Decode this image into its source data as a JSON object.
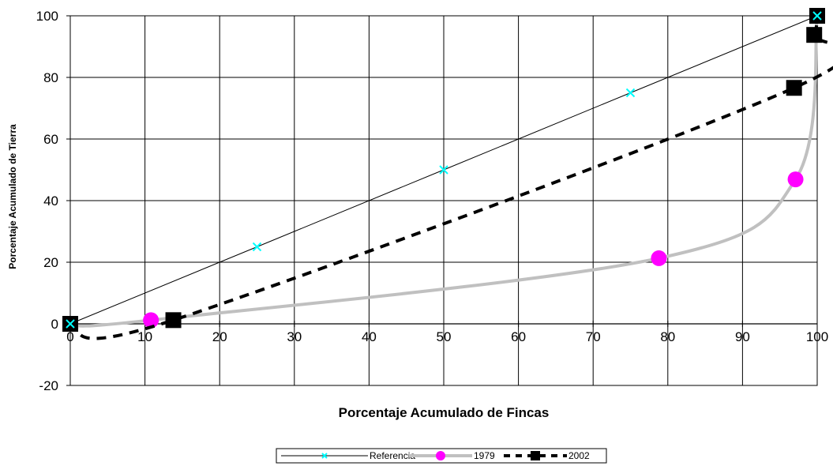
{
  "chart_data": {
    "type": "line",
    "title": "",
    "xlabel": "Porcentaje Acumulado de Fincas",
    "ylabel": "Porcentaje Acumulado de Tierra",
    "xlim": [
      0,
      100
    ],
    "ylim": [
      -20,
      100
    ],
    "x_ticks": [
      "0",
      "10",
      "20",
      "30",
      "40",
      "50",
      "60",
      "70",
      "80",
      "90",
      "100"
    ],
    "y_ticks": [
      "100",
      "80",
      "60",
      "40",
      "20",
      "0",
      "-20"
    ],
    "grid": true,
    "legend_position": "bottom",
    "series": [
      {
        "name": "Referencia",
        "color": "#00ffff",
        "line_color": "#000000",
        "marker": "x",
        "x": [
          0,
          25,
          50,
          75,
          100
        ],
        "y": [
          0,
          25,
          50,
          75,
          100
        ]
      },
      {
        "name": "1979",
        "color": "#c0c0c0",
        "marker_color": "#ff00ff",
        "marker": "circle",
        "smooth": true,
        "x": [
          0,
          10.8,
          78.8,
          97.1,
          100
        ],
        "y": [
          0,
          1.2,
          21.3,
          46.9,
          100
        ]
      },
      {
        "name": "2002",
        "color": "#000000",
        "marker": "square",
        "dashed": true,
        "smooth": true,
        "x": [
          0,
          13.8,
          96.9,
          99.6,
          100
        ],
        "y": [
          0,
          1.2,
          76.6,
          93.8,
          100
        ]
      }
    ]
  }
}
